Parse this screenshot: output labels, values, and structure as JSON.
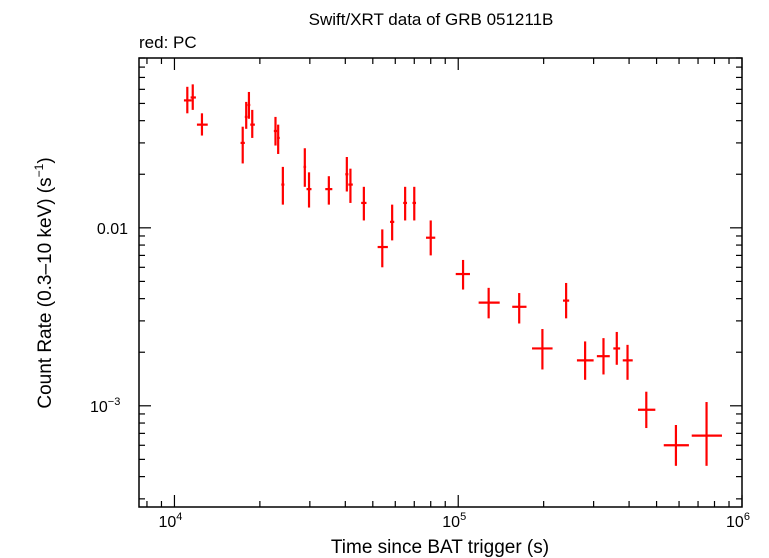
{
  "chart_data": {
    "type": "scatter",
    "title": "Swift/XRT data of GRB 051211B",
    "subtitle": "red: PC",
    "xlabel": "Time since BAT trigger (s)",
    "ylabel": "Count Rate (0.3–10 keV) (s",
    "ylabel_sup": "−1",
    "ylabel_close": ")",
    "x_scale": "log",
    "y_scale": "log",
    "xlim": [
      7500,
      1000000
    ],
    "ylim": [
      0.00027,
      0.09
    ],
    "x_ticks": [
      {
        "value": 10000,
        "base": "10",
        "exp": "4"
      },
      {
        "value": 100000,
        "base": "10",
        "exp": "5"
      },
      {
        "value": 1000000,
        "base": "10",
        "exp": "6"
      }
    ],
    "y_ticks": [
      {
        "value": 0.01,
        "label": "0.01",
        "exp": ""
      },
      {
        "value": 0.001,
        "label": "10",
        "exp": "−3"
      }
    ],
    "grid": false,
    "series": [
      {
        "color": "#ff0000",
        "points": [
          {
            "x": 11100,
            "y": 0.052,
            "xlo": 10800,
            "xhi": 11500,
            "ylo": 0.044,
            "yhi": 0.062
          },
          {
            "x": 11600,
            "y": 0.054,
            "xlo": 11400,
            "xhi": 11900,
            "ylo": 0.046,
            "yhi": 0.064
          },
          {
            "x": 12500,
            "y": 0.038,
            "xlo": 12000,
            "xhi": 13100,
            "ylo": 0.033,
            "yhi": 0.044
          },
          {
            "x": 17400,
            "y": 0.03,
            "xlo": 17100,
            "xhi": 17700,
            "ylo": 0.023,
            "yhi": 0.037
          },
          {
            "x": 17900,
            "y": 0.042,
            "xlo": 17700,
            "xhi": 18100,
            "ylo": 0.036,
            "yhi": 0.051
          },
          {
            "x": 18300,
            "y": 0.049,
            "xlo": 18100,
            "xhi": 18500,
            "ylo": 0.041,
            "yhi": 0.058
          },
          {
            "x": 18800,
            "y": 0.038,
            "xlo": 18500,
            "xhi": 19200,
            "ylo": 0.032,
            "yhi": 0.046
          },
          {
            "x": 22700,
            "y": 0.035,
            "xlo": 22400,
            "xhi": 23000,
            "ylo": 0.029,
            "yhi": 0.042
          },
          {
            "x": 23200,
            "y": 0.032,
            "xlo": 23000,
            "xhi": 23500,
            "ylo": 0.026,
            "yhi": 0.038
          },
          {
            "x": 24100,
            "y": 0.0175,
            "xlo": 23800,
            "xhi": 24400,
            "ylo": 0.0135,
            "yhi": 0.022
          },
          {
            "x": 28800,
            "y": 0.022,
            "xlo": 28500,
            "xhi": 29100,
            "ylo": 0.017,
            "yhi": 0.028
          },
          {
            "x": 29800,
            "y": 0.0165,
            "xlo": 29200,
            "xhi": 30400,
            "ylo": 0.013,
            "yhi": 0.0205
          },
          {
            "x": 35000,
            "y": 0.0165,
            "xlo": 34000,
            "xhi": 36000,
            "ylo": 0.0135,
            "yhi": 0.0195
          },
          {
            "x": 40500,
            "y": 0.02,
            "xlo": 40000,
            "xhi": 41000,
            "ylo": 0.016,
            "yhi": 0.025
          },
          {
            "x": 41700,
            "y": 0.0175,
            "xlo": 41000,
            "xhi": 42500,
            "ylo": 0.0138,
            "yhi": 0.0215
          },
          {
            "x": 46500,
            "y": 0.0138,
            "xlo": 45500,
            "xhi": 47500,
            "ylo": 0.011,
            "yhi": 0.017
          },
          {
            "x": 54000,
            "y": 0.0078,
            "xlo": 52000,
            "xhi": 56500,
            "ylo": 0.006,
            "yhi": 0.0098
          },
          {
            "x": 58500,
            "y": 0.0108,
            "xlo": 57500,
            "xhi": 59500,
            "ylo": 0.0085,
            "yhi": 0.0135
          },
          {
            "x": 65000,
            "y": 0.0138,
            "xlo": 64000,
            "xhi": 66000,
            "ylo": 0.011,
            "yhi": 0.017
          },
          {
            "x": 70000,
            "y": 0.0138,
            "xlo": 69000,
            "xhi": 71000,
            "ylo": 0.011,
            "yhi": 0.017
          },
          {
            "x": 80000,
            "y": 0.0088,
            "xlo": 77000,
            "xhi": 83000,
            "ylo": 0.007,
            "yhi": 0.011
          },
          {
            "x": 104000,
            "y": 0.0055,
            "xlo": 98000,
            "xhi": 110000,
            "ylo": 0.0045,
            "yhi": 0.0066
          },
          {
            "x": 128000,
            "y": 0.0038,
            "xlo": 118000,
            "xhi": 140000,
            "ylo": 0.0031,
            "yhi": 0.0046
          },
          {
            "x": 164000,
            "y": 0.0036,
            "xlo": 155000,
            "xhi": 174000,
            "ylo": 0.0029,
            "yhi": 0.0043
          },
          {
            "x": 198000,
            "y": 0.0021,
            "xlo": 182000,
            "xhi": 215000,
            "ylo": 0.0016,
            "yhi": 0.0027
          },
          {
            "x": 240000,
            "y": 0.0039,
            "xlo": 234000,
            "xhi": 246000,
            "ylo": 0.0031,
            "yhi": 0.0049
          },
          {
            "x": 280000,
            "y": 0.0018,
            "xlo": 262000,
            "xhi": 300000,
            "ylo": 0.0014,
            "yhi": 0.0023
          },
          {
            "x": 325000,
            "y": 0.0019,
            "xlo": 308000,
            "xhi": 342000,
            "ylo": 0.0015,
            "yhi": 0.0024
          },
          {
            "x": 362000,
            "y": 0.0021,
            "xlo": 352000,
            "xhi": 372000,
            "ylo": 0.0017,
            "yhi": 0.0026
          },
          {
            "x": 395000,
            "y": 0.0018,
            "xlo": 380000,
            "xhi": 412000,
            "ylo": 0.0014,
            "yhi": 0.0022
          },
          {
            "x": 460000,
            "y": 0.00095,
            "xlo": 430000,
            "xhi": 495000,
            "ylo": 0.00075,
            "yhi": 0.0012
          },
          {
            "x": 585000,
            "y": 0.0006,
            "xlo": 530000,
            "xhi": 650000,
            "ylo": 0.00046,
            "yhi": 0.00078
          },
          {
            "x": 750000,
            "y": 0.00068,
            "xlo": 665000,
            "xhi": 850000,
            "ylo": 0.00046,
            "yhi": 0.00105
          }
        ]
      }
    ]
  }
}
